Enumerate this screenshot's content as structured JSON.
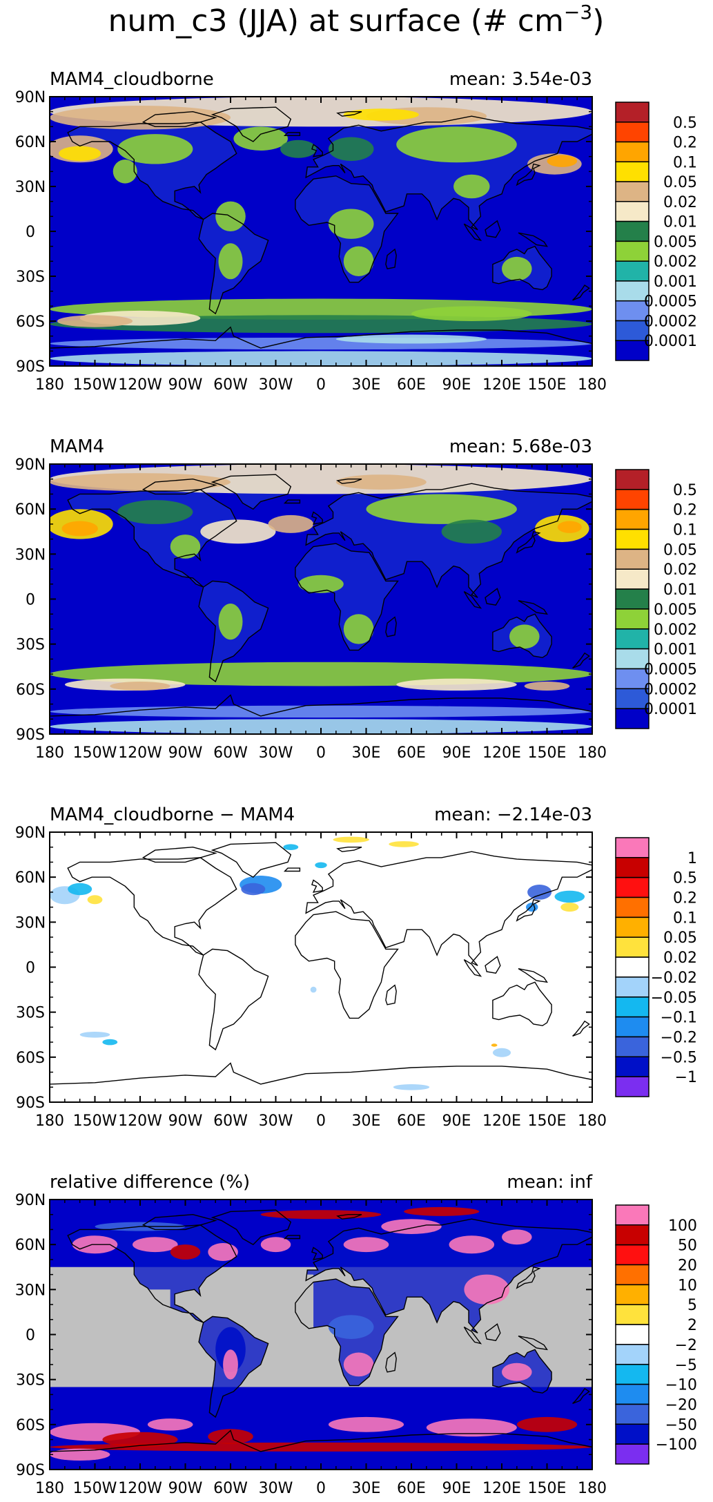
{
  "figure": {
    "title": "num_c3 (JJA) at surface (# cm",
    "title_sup": "−3",
    "title_end": ")"
  },
  "colors": {
    "abs_palette": [
      "#0000c8",
      "#2d5ad8",
      "#6e8ff0",
      "#a9dcea",
      "#21b3a8",
      "#8ed238",
      "#24804a",
      "#f6e9c8",
      "#ddb485",
      "#ffe000",
      "#ffa500",
      "#ff4400",
      "#b42028"
    ],
    "diff_palette": [
      "#7b2ef0",
      "#0010c8",
      "#3a64dc",
      "#1e8cf0",
      "#14b8f0",
      "#a3d3fa",
      "#ffffff",
      "#ffe23c",
      "#ffb000",
      "#ff7000",
      "#ff1010",
      "#c80000",
      "#fa78b9"
    ],
    "missing": "#c0c0c0",
    "ocean_background": "#0000c8",
    "coast": "#000000"
  },
  "chart_data": [
    {
      "type": "heatmap",
      "panel": "MAM4_cloudborne",
      "title": "MAM4_cloudborne",
      "mean_label": "mean:",
      "mean_value": "3.54e-03",
      "xlim": [
        -180,
        180
      ],
      "ylim": [
        -90,
        90
      ],
      "x_ticks": [
        "180",
        "150W",
        "120W",
        "90W",
        "60W",
        "30W",
        "0",
        "30E",
        "60E",
        "90E",
        "120E",
        "150E",
        "180"
      ],
      "y_ticks": [
        "90N",
        "60N",
        "30N",
        "0",
        "30S",
        "60S",
        "90S"
      ],
      "legend_labels": [
        "0.5",
        "0.2",
        "0.1",
        "0.05",
        "0.02",
        "0.01",
        "0.005",
        "0.002",
        "0.001",
        "0.0005",
        "0.0002",
        "0.0001"
      ],
      "palette": "abs"
    },
    {
      "type": "heatmap",
      "panel": "MAM4",
      "title": "MAM4",
      "mean_label": "mean:",
      "mean_value": "5.68e-03",
      "xlim": [
        -180,
        180
      ],
      "ylim": [
        -90,
        90
      ],
      "x_ticks": [
        "180",
        "150W",
        "120W",
        "90W",
        "60W",
        "30W",
        "0",
        "30E",
        "60E",
        "90E",
        "120E",
        "150E",
        "180"
      ],
      "y_ticks": [
        "90N",
        "60N",
        "30N",
        "0",
        "30S",
        "60S",
        "90S"
      ],
      "legend_labels": [
        "0.5",
        "0.2",
        "0.1",
        "0.05",
        "0.02",
        "0.01",
        "0.005",
        "0.002",
        "0.001",
        "0.0005",
        "0.0002",
        "0.0001"
      ],
      "palette": "abs"
    },
    {
      "type": "heatmap",
      "panel": "difference",
      "title": "MAM4_cloudborne − MAM4",
      "mean_label": "mean:",
      "mean_value": "−2.14e-03",
      "xlim": [
        -180,
        180
      ],
      "ylim": [
        -90,
        90
      ],
      "x_ticks": [
        "180",
        "150W",
        "120W",
        "90W",
        "60W",
        "30W",
        "0",
        "30E",
        "60E",
        "90E",
        "120E",
        "150E",
        "180"
      ],
      "y_ticks": [
        "90N",
        "60N",
        "30N",
        "0",
        "30S",
        "60S",
        "90S"
      ],
      "legend_labels": [
        "1",
        "0.5",
        "0.2",
        "0.1",
        "0.05",
        "0.02",
        "−0.02",
        "−0.05",
        "−0.1",
        "−0.2",
        "−0.5",
        "−1"
      ],
      "palette": "diff"
    },
    {
      "type": "heatmap",
      "panel": "relative_difference",
      "title": "relative difference (%)",
      "mean_label": "mean:",
      "mean_value": "inf",
      "xlim": [
        -180,
        180
      ],
      "ylim": [
        -90,
        90
      ],
      "x_ticks": [
        "180",
        "150W",
        "120W",
        "90W",
        "60W",
        "30W",
        "0",
        "30E",
        "60E",
        "90E",
        "120E",
        "150E",
        "180"
      ],
      "y_ticks": [
        "90N",
        "60N",
        "30N",
        "0",
        "30S",
        "60S",
        "90S"
      ],
      "legend_labels": [
        "100",
        "50",
        "20",
        "10",
        "5",
        "2",
        "−2",
        "−5",
        "−10",
        "−20",
        "−50",
        "−100"
      ],
      "palette": "diff"
    }
  ]
}
